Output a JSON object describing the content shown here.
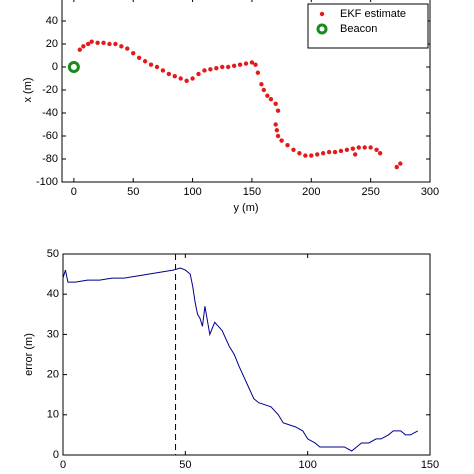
{
  "chart_data": [
    {
      "type": "scatter",
      "xlabel": "y (m)",
      "ylabel": "x (m)",
      "xlim": [
        -10,
        300
      ],
      "ylim": [
        -100,
        60
      ],
      "xticks": [
        0,
        50,
        100,
        150,
        200,
        250,
        300
      ],
      "yticks": [
        -100,
        -80,
        -60,
        -40,
        -20,
        0,
        20,
        40
      ],
      "legend": "upper right",
      "series": [
        {
          "name": "EKF estimate",
          "color": "#e31a1c",
          "marker": "dot",
          "x": [
            5,
            8,
            12,
            15,
            20,
            25,
            30,
            35,
            40,
            45,
            50,
            55,
            60,
            65,
            70,
            75,
            80,
            85,
            90,
            95,
            100,
            105,
            110,
            115,
            120,
            125,
            130,
            135,
            140,
            145,
            150,
            153,
            155,
            158,
            160,
            163,
            166,
            170,
            172,
            170,
            171,
            172,
            175,
            180,
            185,
            190,
            195,
            200,
            205,
            210,
            215,
            220,
            225,
            230,
            235,
            240,
            245,
            250,
            255,
            258,
            237,
            272,
            275
          ],
          "values": [
            15,
            18,
            20,
            22,
            21,
            21,
            20,
            20,
            18,
            16,
            12,
            8,
            5,
            2,
            0,
            -3,
            -6,
            -8,
            -10,
            -12,
            -10,
            -6,
            -3,
            -2,
            -1,
            0,
            0,
            1,
            2,
            3,
            4,
            2,
            -5,
            -15,
            -20,
            -25,
            -28,
            -32,
            -38,
            -50,
            -55,
            -60,
            -64,
            -68,
            -72,
            -75,
            -77,
            -77,
            -76,
            -75,
            -74,
            -74,
            -73,
            -72,
            -71,
            -70,
            -70,
            -70,
            -72,
            -75,
            -76,
            -87,
            -84
          ]
        },
        {
          "name": "Beacon",
          "color": "#1a8a1a",
          "marker": "ring",
          "x": [
            0
          ],
          "values": [
            0
          ]
        }
      ]
    },
    {
      "type": "line",
      "ylabel": "error (m)",
      "xlim": [
        0,
        150
      ],
      "ylim": [
        0,
        50
      ],
      "xticks": [
        0,
        50,
        100,
        150
      ],
      "yticks": [
        0,
        10,
        20,
        30,
        40,
        50
      ],
      "vline": 46,
      "series": [
        {
          "color": "#00008b",
          "x": [
            0,
            1,
            2,
            3,
            5,
            10,
            15,
            20,
            25,
            30,
            35,
            40,
            45,
            48,
            50,
            52,
            53,
            54,
            55,
            56,
            57,
            58,
            60,
            62,
            65,
            68,
            70,
            72,
            75,
            78,
            80,
            85,
            88,
            90,
            95,
            98,
            100,
            103,
            105,
            108,
            110,
            112,
            115,
            118,
            120,
            122,
            125,
            128,
            130,
            133,
            135,
            138,
            140,
            142,
            145
          ],
          "values": [
            44,
            46,
            43,
            43,
            43,
            43.5,
            43.5,
            44,
            44,
            44.5,
            45,
            45.5,
            46,
            46.5,
            46,
            45,
            42,
            38,
            35,
            34,
            32,
            37,
            30,
            33,
            31,
            27,
            25,
            22,
            18,
            14,
            13,
            12,
            10,
            8,
            7,
            6,
            4,
            3,
            2,
            2,
            2,
            2,
            2,
            1,
            2,
            3,
            3,
            4,
            4,
            5,
            6,
            6,
            5,
            5,
            6
          ]
        }
      ]
    }
  ]
}
